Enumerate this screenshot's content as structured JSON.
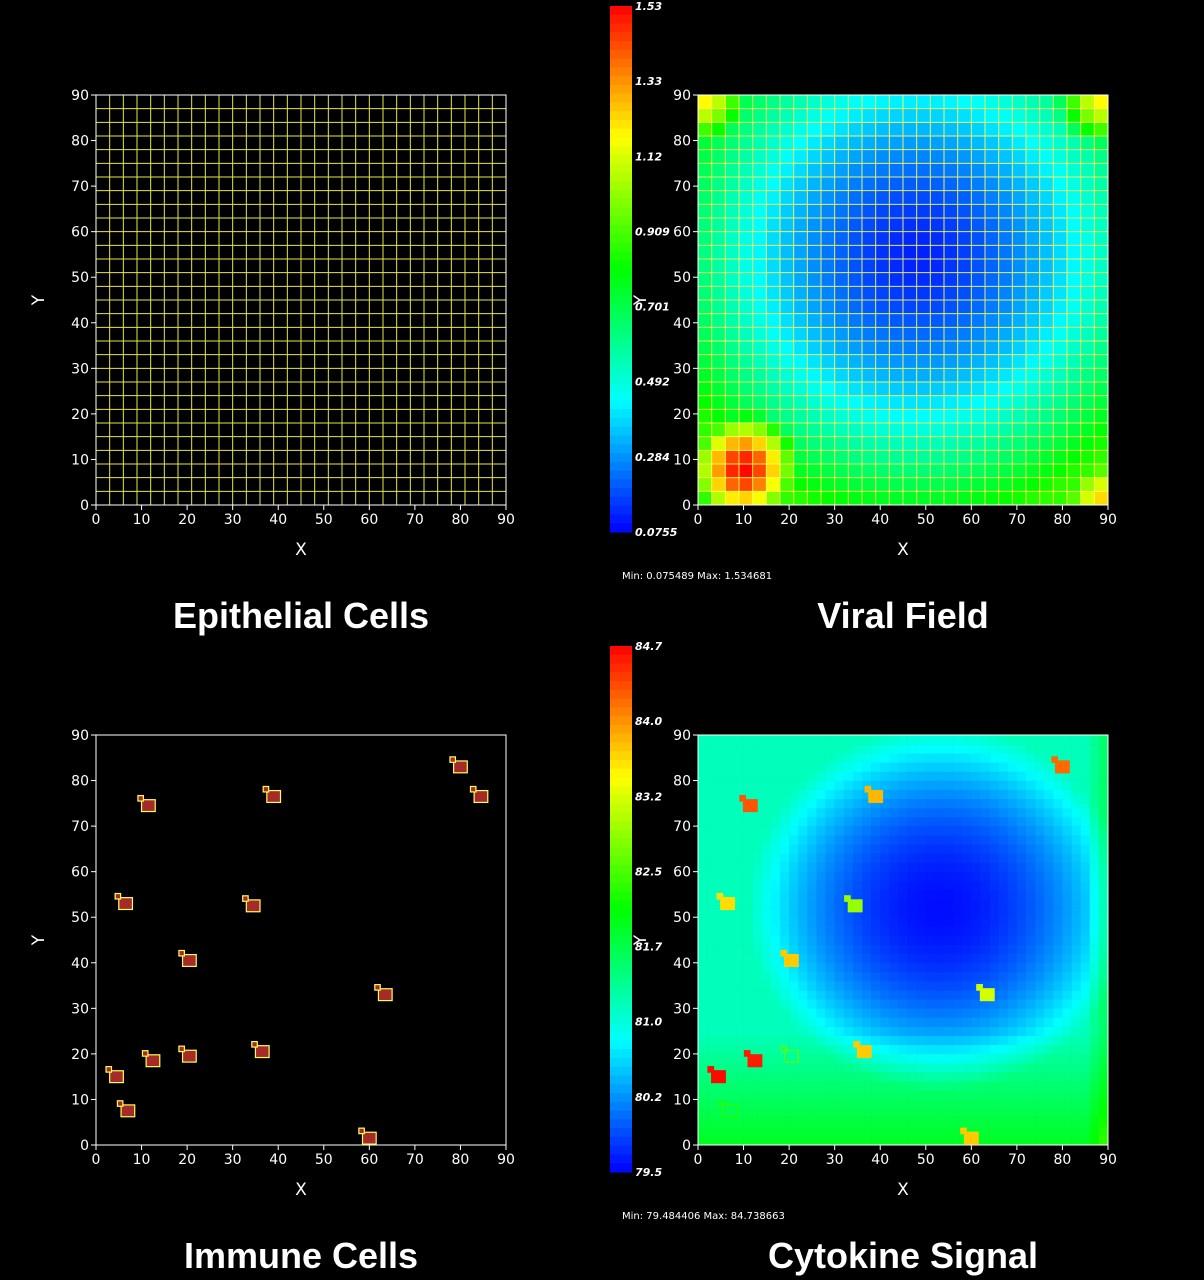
{
  "colors": {
    "background": "#000000",
    "axis": "#ffffff",
    "grid_outline": "#ffff55",
    "immune_fill": "#a52a2a",
    "colormap": [
      "#0000ff",
      "#00ffff",
      "#00ff00",
      "#ffff00",
      "#ff0000"
    ]
  },
  "chart_data": [
    {
      "type": "grid",
      "panel": "epithelial",
      "title": "Epithelial Cells",
      "xlabel": "X",
      "ylabel": "Y",
      "xlim": [
        0,
        90
      ],
      "ylim": [
        0,
        90
      ],
      "xticks": [
        "0",
        "10",
        "20",
        "30",
        "40",
        "50",
        "60",
        "70",
        "80",
        "90"
      ],
      "yticks": [
        "0",
        "10",
        "20",
        "30",
        "40",
        "50",
        "60",
        "70",
        "80",
        "90"
      ],
      "cell_size": 3
    },
    {
      "type": "heatmap",
      "panel": "viral",
      "title": "Viral Field",
      "xlabel": "X",
      "ylabel": "Y",
      "xlim": [
        0,
        90
      ],
      "ylim": [
        0,
        90
      ],
      "xticks": [
        "0",
        "10",
        "20",
        "30",
        "40",
        "50",
        "60",
        "70",
        "80",
        "90"
      ],
      "yticks": [
        "0",
        "10",
        "20",
        "30",
        "40",
        "50",
        "60",
        "70",
        "80",
        "90"
      ],
      "colorbar_ticks": [
        "1.53",
        "1.33",
        "1.12",
        "0.909",
        "0.701",
        "0.492",
        "0.284",
        "0.0755"
      ],
      "range_text": "Min: 0.075489 Max: 1.534681",
      "min": 0.075489,
      "max": 1.534681,
      "hotspots": [
        {
          "x": 10,
          "y": 8,
          "peak": 1.53
        },
        {
          "x": 90,
          "y": 0,
          "peak": 1.25
        },
        {
          "x": 0,
          "y": 90,
          "peak": 1.2
        },
        {
          "x": 90,
          "y": 90,
          "peak": 1.2
        }
      ],
      "cell_size": 3
    },
    {
      "type": "scatter",
      "panel": "immune",
      "title": "Immune Cells",
      "xlabel": "X",
      "ylabel": "Y",
      "xlim": [
        0,
        90
      ],
      "ylim": [
        0,
        90
      ],
      "xticks": [
        "0",
        "10",
        "20",
        "30",
        "40",
        "50",
        "60",
        "70",
        "80",
        "90"
      ],
      "yticks": [
        "0",
        "10",
        "20",
        "30",
        "40",
        "50",
        "60",
        "70",
        "80",
        "90"
      ],
      "cells": [
        {
          "x": 4.5,
          "y": 15
        },
        {
          "x": 7,
          "y": 7.5
        },
        {
          "x": 11.5,
          "y": 74.5
        },
        {
          "x": 6.5,
          "y": 53
        },
        {
          "x": 12.5,
          "y": 18.5
        },
        {
          "x": 20.5,
          "y": 19.5
        },
        {
          "x": 20.5,
          "y": 40.5
        },
        {
          "x": 34.5,
          "y": 52.5
        },
        {
          "x": 36.5,
          "y": 20.5
        },
        {
          "x": 39,
          "y": 76.5
        },
        {
          "x": 63.5,
          "y": 33
        },
        {
          "x": 60,
          "y": 1.5
        },
        {
          "x": 80,
          "y": 83
        },
        {
          "x": 84.5,
          "y": 76.5
        }
      ]
    },
    {
      "type": "heatmap",
      "panel": "cytokine",
      "title": "Cytokine Signal",
      "xlabel": "X",
      "ylabel": "Y",
      "xlim": [
        0,
        90
      ],
      "ylim": [
        0,
        90
      ],
      "xticks": [
        "0",
        "10",
        "20",
        "30",
        "40",
        "50",
        "60",
        "70",
        "80",
        "90"
      ],
      "yticks": [
        "0",
        "10",
        "20",
        "30",
        "40",
        "50",
        "60",
        "70",
        "80",
        "90"
      ],
      "colorbar_ticks": [
        "84.7",
        "84.0",
        "83.2",
        "82.5",
        "81.7",
        "81.0",
        "80.2",
        "79.5"
      ],
      "range_text": "Min: 79.484406 Max: 84.738663",
      "min": 79.484406,
      "max": 84.738663,
      "cells": [
        {
          "x": 4.5,
          "y": 15,
          "v": 84.7,
          "outline": false
        },
        {
          "x": 7,
          "y": 7.5,
          "v": 82.3,
          "outline": true
        },
        {
          "x": 11.5,
          "y": 74.5,
          "v": 84.3,
          "outline": false
        },
        {
          "x": 6.5,
          "y": 53,
          "v": 83.6,
          "outline": false
        },
        {
          "x": 12.5,
          "y": 18.5,
          "v": 84.6,
          "outline": false
        },
        {
          "x": 20.5,
          "y": 19.5,
          "v": 82.6,
          "outline": true
        },
        {
          "x": 20.5,
          "y": 40.5,
          "v": 83.7,
          "outline": false
        },
        {
          "x": 34.5,
          "y": 52.5,
          "v": 82.9,
          "outline": false
        },
        {
          "x": 36.5,
          "y": 20.5,
          "v": 83.7,
          "outline": false
        },
        {
          "x": 39,
          "y": 76.5,
          "v": 83.8,
          "outline": false
        },
        {
          "x": 63.5,
          "y": 33,
          "v": 83.2,
          "outline": false
        },
        {
          "x": 60,
          "y": 1.5,
          "v": 83.7,
          "outline": false
        },
        {
          "x": 80,
          "y": 83,
          "v": 84.2,
          "outline": false
        },
        {
          "x": 84.5,
          "y": 76.5,
          "v": 81.2,
          "outline": true
        }
      ]
    }
  ]
}
